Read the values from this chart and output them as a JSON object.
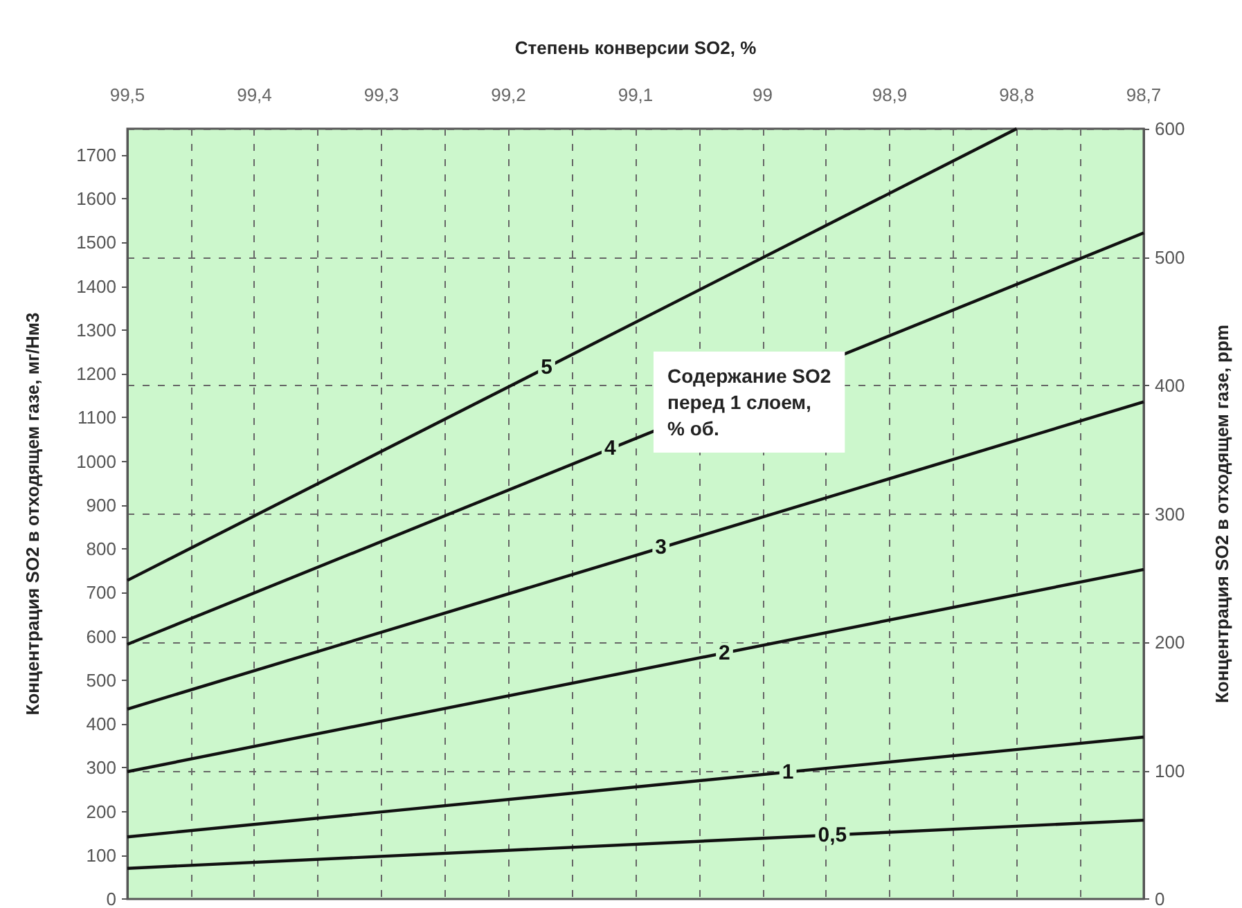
{
  "chart_data": {
    "type": "line",
    "xlabel": "Степень конверсии SO2, %",
    "ylabel": "Концентрация SO2 в отходящем газе, мг/Нм3",
    "y2label": "Концентрация SO2 в отходящем газе, ppm",
    "xlim": [
      99.5,
      98.7
    ],
    "xticks": [
      {
        "value": 99.5,
        "label": "99,5"
      },
      {
        "value": 99.45,
        "label": null
      },
      {
        "value": 99.4,
        "label": "99,4"
      },
      {
        "value": 99.35,
        "label": null
      },
      {
        "value": 99.3,
        "label": "99,3"
      },
      {
        "value": 99.25,
        "label": null
      },
      {
        "value": 99.2,
        "label": "99,2"
      },
      {
        "value": 99.15,
        "label": null
      },
      {
        "value": 99.1,
        "label": "99,1"
      },
      {
        "value": 99.05,
        "label": null
      },
      {
        "value": 99,
        "label": "99"
      },
      {
        "value": 98.95,
        "label": null
      },
      {
        "value": 98.9,
        "label": "98,9"
      },
      {
        "value": 98.85,
        "label": null
      },
      {
        "value": 98.8,
        "label": "98,8"
      },
      {
        "value": 98.75,
        "label": null
      },
      {
        "value": 98.7,
        "label": "98,7"
      }
    ],
    "ylim": [
      0,
      1760
    ],
    "yticks": [
      0,
      100,
      200,
      300,
      400,
      500,
      600,
      700,
      800,
      900,
      1000,
      1100,
      1200,
      1300,
      1400,
      1500,
      1600,
      1700
    ],
    "y2lim": [
      0,
      600
    ],
    "y2ticks": [
      0,
      100,
      200,
      300,
      400,
      500,
      600
    ],
    "grid": true,
    "marker": "none",
    "line_style": "solid",
    "series": [
      {
        "color": "#111111",
        "x": [
          99.5,
          98.8
        ],
        "values": [
          728,
          1760
        ]
      },
      {
        "color": "#111111",
        "x": [
          99.5,
          98.7
        ],
        "values": [
          582,
          1522
        ]
      },
      {
        "color": "#111111",
        "x": [
          99.5,
          98.7
        ],
        "values": [
          434,
          1136
        ]
      },
      {
        "color": "#111111",
        "x": [
          99.5,
          98.7
        ],
        "values": [
          291,
          753
        ]
      },
      {
        "color": "#111111",
        "x": [
          99.5,
          98.7
        ],
        "values": [
          142,
          370
        ]
      },
      {
        "color": "#111111",
        "x": [
          99.5,
          98.7
        ],
        "values": [
          70,
          180
        ]
      }
    ],
    "annotations": [
      {
        "text": "5",
        "x": 99.17,
        "y": 1214
      },
      {
        "text": "4",
        "x": 99.12,
        "y": 1029
      },
      {
        "text": "3",
        "x": 99.08,
        "y": 803
      },
      {
        "text": "2",
        "x": 99.03,
        "y": 562
      },
      {
        "text": "1",
        "x": 98.98,
        "y": 290
      },
      {
        "text": "0,5",
        "x": 98.945,
        "y": 146
      },
      "Содержание SO2\nперед 1 слоем,\n% об."
    ]
  }
}
